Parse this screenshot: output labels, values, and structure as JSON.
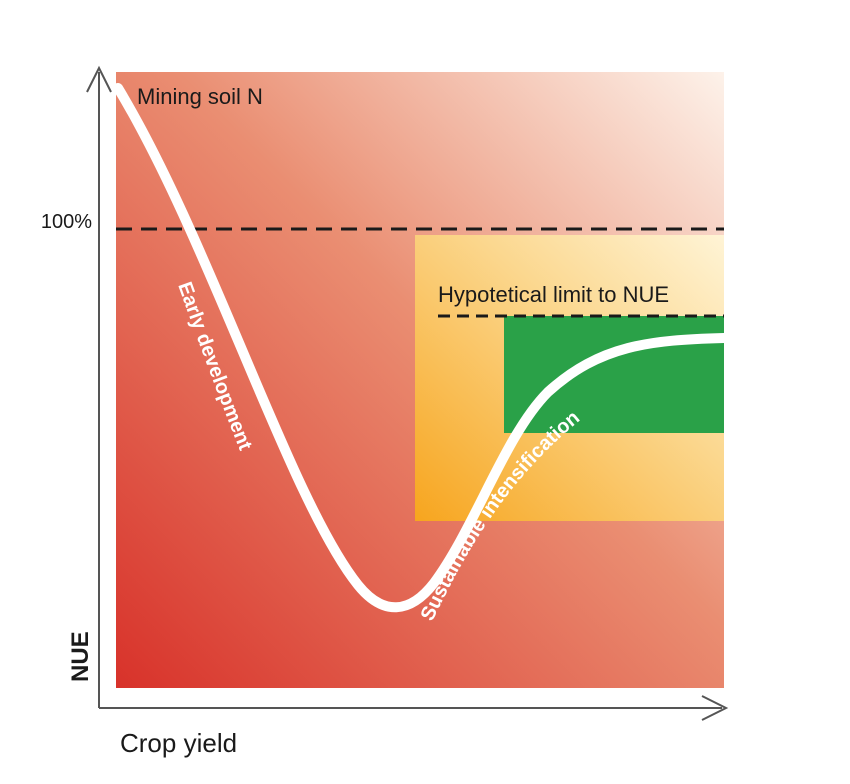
{
  "labels": {
    "mining": "Mining soil N",
    "hundred_percent": "100%",
    "limit": "Hypotetical limit to NUE",
    "y_axis": "NUE",
    "x_axis": "Crop yield"
  },
  "curve_labels": {
    "early": "Early development",
    "sustainable": "Sustainable intensification"
  },
  "colors": {
    "plot_dark": "#d8322a",
    "plot_light": "#fdf2ea",
    "orange": "#f7a51e",
    "orange_light": "#fff4d6",
    "green": "#2aa148",
    "curve": "#ffffff",
    "axis": "#555555",
    "dashed": "#1a1a1a"
  }
}
